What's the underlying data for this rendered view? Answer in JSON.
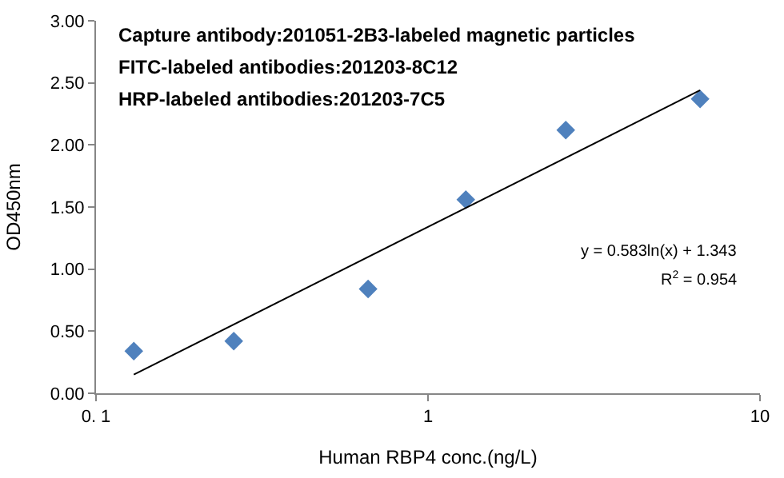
{
  "chart_data": {
    "type": "scatter",
    "xlabel": "Human RBP4 conc.(ng/L)",
    "ylabel": "OD450nm",
    "log": "x",
    "marker": "diamond",
    "legend": false,
    "xlim": [
      0.1,
      10
    ],
    "xticks": [
      {
        "value": 0.1,
        "label": "0. 1"
      },
      1,
      10
    ],
    "ylim": [
      0,
      3
    ],
    "yticks": [
      {
        "value": 0,
        "label": "0.00"
      },
      {
        "value": 0.5,
        "label": "0.50"
      },
      {
        "value": 1,
        "label": "1.00"
      },
      {
        "value": 1.5,
        "label": "1.50"
      },
      {
        "value": 2,
        "label": "2.00"
      },
      {
        "value": 2.5,
        "label": "2.50"
      },
      {
        "value": 3,
        "label": "3.00"
      }
    ],
    "series": [
      {
        "color": "#4f81bd",
        "x": [
          0.13,
          0.26,
          0.66,
          1.3,
          2.6,
          6.6
        ],
        "values": [
          0.34,
          0.42,
          0.84,
          1.56,
          2.12,
          2.37
        ]
      },
      {
        "type": "line",
        "color": "#000000",
        "marker": "none",
        "x": [
          0.13,
          6.6
        ],
        "values": [
          0.15,
          2.44
        ]
      }
    ],
    "annotations": [
      "Capture antibody:201051-2B3-labeled magnetic particles",
      "FITC-labeled antibodies:201203-8C12",
      "HRP-labeled antibodies:201203-7C5",
      "y = 0.583ln(x) + 1.343",
      "R$^{2}$ = 0.954"
    ]
  }
}
